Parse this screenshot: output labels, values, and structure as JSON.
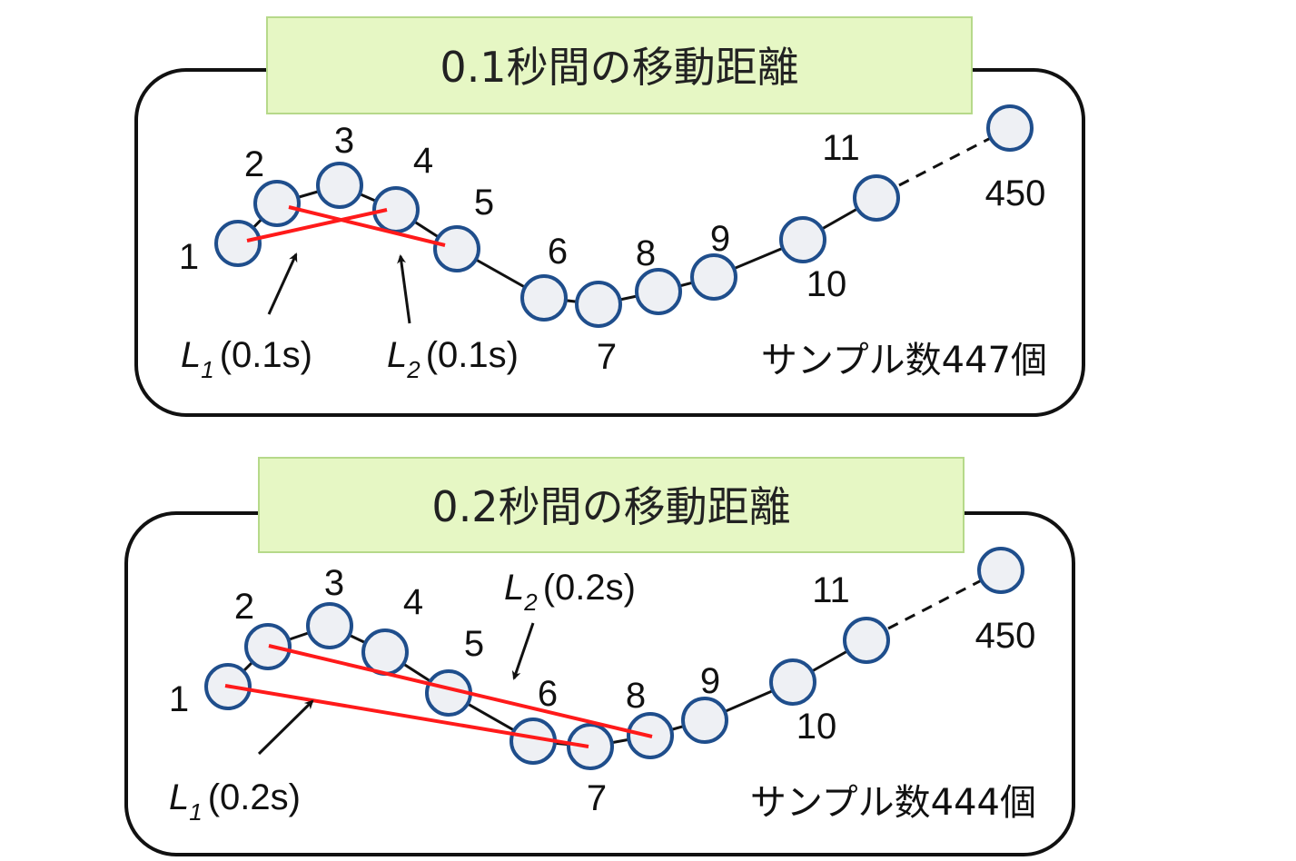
{
  "colors": {
    "node_fill": "#eef0f4",
    "node_stroke": "#1f4e8c",
    "red_line": "#ff1a1a",
    "title_bg": "#e6f7c4",
    "title_border": "#b6d98a"
  },
  "panels": [
    {
      "title": "0.1秒間の移動距離",
      "samples": "サンプル数447個",
      "node_labels": [
        "1",
        "2",
        "3",
        "4",
        "5",
        "6",
        "7",
        "8",
        "9",
        "10",
        "11",
        "450"
      ],
      "segments": [
        {
          "var": "L",
          "sub": "1",
          "suffix": "(0.1s)"
        },
        {
          "var": "L",
          "sub": "2",
          "suffix": "(0.1s)"
        }
      ]
    },
    {
      "title": "0.2秒間の移動距離",
      "samples": "サンプル数444個",
      "node_labels": [
        "1",
        "2",
        "3",
        "4",
        "5",
        "6",
        "7",
        "8",
        "9",
        "10",
        "11",
        "450"
      ],
      "segments": [
        {
          "var": "L",
          "sub": "1",
          "suffix": "(0.2s)"
        },
        {
          "var": "L",
          "sub": "2",
          "suffix": "(0.2s)"
        }
      ]
    }
  ]
}
